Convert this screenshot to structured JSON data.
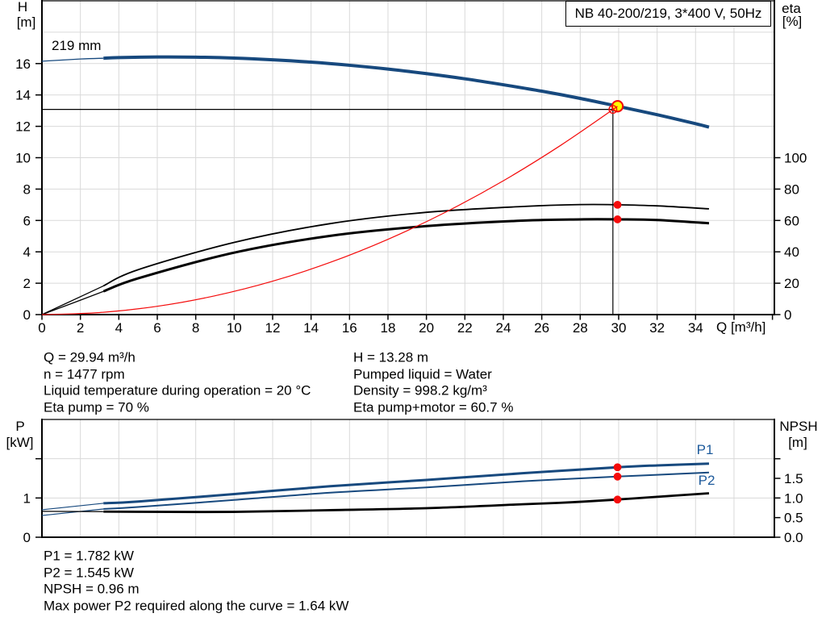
{
  "colors": {
    "curve_blue": "#17497E",
    "label_blue": "#1D5A9B",
    "red": "#F40B0B",
    "yellow": "#FFFF00",
    "grid": "#D9D9D9",
    "axis": "#000000",
    "text": "#000000"
  },
  "title_box": {
    "label": "NB 40-200/219, 3*400 V, 50Hz"
  },
  "impeller_label": "219 mm",
  "axis_labels": {
    "head": "H",
    "head_unit": "[m]",
    "eta": "eta",
    "eta_unit": "[%]",
    "flow_unit": "Q [m³/h]",
    "power": "P",
    "power_unit": "[kW]",
    "npsh": "NPSH",
    "npsh_unit": "[m]"
  },
  "curve_labels": {
    "p1": "P1",
    "p2": "P2"
  },
  "info_block": {
    "left": [
      "Q = 29.94 m³/h",
      "n = 1477 rpm",
      "Liquid temperature during operation = 20 °C",
      "Eta pump = 70 %"
    ],
    "right": [
      "H = 13.28 m",
      "Pumped liquid = Water",
      "Density = 998.2 kg/m³",
      "Eta pump+motor = 60.7 %"
    ]
  },
  "result_block": {
    "lines": [
      "P1 = 1.782 kW",
      "P2 = 1.545 kW",
      "NPSH = 0.96 m",
      "Max power P2 required along the curve = 1.64 kW"
    ]
  },
  "chart_data": [
    {
      "type": "line",
      "id": "hq",
      "title": "NB 40-200/219, 3*400 V, 50Hz",
      "xlabel": "Q [m³/h]",
      "ylabel_left": "H [m]",
      "ylabel_right": "eta [%]",
      "xlim": [
        0,
        38.1
      ],
      "ylim_left": [
        0,
        20
      ],
      "ylim_right": [
        0,
        200
      ],
      "grid": true,
      "x_tick_step": 2,
      "x_ticks_labeled": [
        0,
        2,
        4,
        6,
        8,
        10,
        12,
        14,
        16,
        18,
        20,
        22,
        24,
        26,
        28,
        30,
        32,
        34
      ],
      "x_ticks_unlabeled": [
        36,
        38
      ],
      "x_grid": [
        2,
        4,
        6,
        8,
        10,
        12,
        14,
        16,
        18,
        20,
        22,
        24,
        26,
        28,
        30,
        32,
        34,
        36,
        38
      ],
      "y_ticks_left": [
        0,
        2,
        4,
        6,
        8,
        10,
        12,
        14,
        16
      ],
      "y_grid_left": [
        2,
        4,
        6,
        8,
        10,
        12,
        14,
        16,
        18
      ],
      "y_ticks_right": [
        0,
        20,
        40,
        60,
        80,
        100
      ],
      "crosshair": {
        "q": 29.7,
        "h": 13.08
      },
      "series": [
        {
          "name": "eta-pump-curve",
          "label": "eta pump",
          "axis": "right",
          "color": "black",
          "width": 1.8,
          "lead_thin": {
            "until": 3.2,
            "width": 1.3
          },
          "points": [
            [
              0,
              0
            ],
            [
              2,
              11.4
            ],
            [
              3.2,
              18.3
            ],
            [
              5,
              28.6
            ],
            [
              10,
              46
            ],
            [
              15,
              58
            ],
            [
              20,
              65.2
            ],
            [
              25,
              68.9
            ],
            [
              28,
              70.1
            ],
            [
              29.94,
              70.0
            ],
            [
              32,
              69.3
            ],
            [
              34.7,
              67.4
            ]
          ]
        },
        {
          "name": "eta-pump-motor-curve",
          "label": "eta pump+motor",
          "axis": "right",
          "color": "black",
          "width": 3,
          "lead_thin": {
            "until": 3.2,
            "width": 1.3
          },
          "points": [
            [
              0,
              0
            ],
            [
              2,
              9.2
            ],
            [
              3.2,
              14.8
            ],
            [
              5,
              23.1
            ],
            [
              10,
              39.5
            ],
            [
              15,
              50.2
            ],
            [
              20,
              56.4
            ],
            [
              25,
              59.9
            ],
            [
              28,
              60.7
            ],
            [
              29.94,
              60.7
            ],
            [
              32,
              60.3
            ],
            [
              34.7,
              58.2
            ]
          ]
        },
        {
          "name": "pump-curve",
          "label": "219 mm",
          "axis": "left",
          "color": "blue",
          "width": 4,
          "lead_thin": {
            "until": 3.2,
            "width": 1.3
          },
          "points": [
            [
              0,
              16.15
            ],
            [
              2,
              16.29
            ],
            [
              3.2,
              16.34
            ],
            [
              4,
              16.38
            ],
            [
              6,
              16.42
            ],
            [
              8,
              16.41
            ],
            [
              10,
              16.35
            ],
            [
              12,
              16.24
            ],
            [
              14,
              16.09
            ],
            [
              16,
              15.89
            ],
            [
              18,
              15.65
            ],
            [
              20,
              15.36
            ],
            [
              22,
              15.03
            ],
            [
              24,
              14.65
            ],
            [
              26,
              14.24
            ],
            [
              28,
              13.78
            ],
            [
              29.94,
              13.28
            ],
            [
              32,
              12.74
            ],
            [
              34,
              12.17
            ],
            [
              34.7,
              11.95
            ]
          ]
        },
        {
          "name": "system-curve",
          "label": "system curve",
          "axis": "left",
          "color": "red",
          "width": 1.2,
          "above_markers": true,
          "points": [
            [
              0,
              0
            ],
            [
              3,
              0.13
            ],
            [
              6,
              0.53
            ],
            [
              9,
              1.2
            ],
            [
              12,
              2.13
            ],
            [
              15,
              3.33
            ],
            [
              18,
              4.8
            ],
            [
              21,
              6.53
            ],
            [
              24,
              8.53
            ],
            [
              27,
              10.8
            ],
            [
              29.94,
              13.27
            ]
          ]
        }
      ],
      "markers": {
        "duty_point": {
          "q": 29.94,
          "h": 13.28
        },
        "request_point": {
          "q": 29.7,
          "h": 13.08
        },
        "dots": [
          {
            "q": 29.94,
            "v": 70.0,
            "axis": "right"
          },
          {
            "q": 29.94,
            "v": 60.7,
            "axis": "right"
          }
        ]
      }
    },
    {
      "type": "line",
      "id": "power",
      "xlabel": "Q [m³/h]",
      "ylabel_left": "P [kW]",
      "ylabel_right": "NPSH [m]",
      "xlim": [
        0,
        38.1
      ],
      "ylim_left": [
        0,
        3
      ],
      "ylim_right": [
        0,
        3
      ],
      "grid": true,
      "x_ticks_labeled": [],
      "x_ticks_unlabeled": [],
      "x_grid": [
        2,
        4,
        6,
        8,
        10,
        12,
        14,
        16,
        18,
        20,
        22,
        24,
        26,
        28,
        30,
        32,
        34,
        36,
        38
      ],
      "y_ticks_left": [
        0,
        1,
        2
      ],
      "y_tick_labels_left": [
        "0",
        "1"
      ],
      "y_grid_left": [
        1,
        2
      ],
      "y_ticks_right": [
        0,
        0.5,
        1,
        1.5,
        2
      ],
      "y_tick_labels_right": [
        "0.0",
        "0.5",
        "1.0",
        "1.5"
      ],
      "series": [
        {
          "name": "p1-curve",
          "label": "P1",
          "axis": "left",
          "color": "blue",
          "width": 3,
          "lead_thin": {
            "until": 3.2,
            "width": 1.2
          },
          "points": [
            [
              0,
              0.7
            ],
            [
              3.2,
              0.865
            ],
            [
              5,
              0.91
            ],
            [
              10,
              1.1
            ],
            [
              15,
              1.3
            ],
            [
              20,
              1.46
            ],
            [
              25,
              1.63
            ],
            [
              29.94,
              1.782
            ],
            [
              32,
              1.83
            ],
            [
              34.7,
              1.875
            ]
          ]
        },
        {
          "name": "p2-curve",
          "label": "P2",
          "axis": "left",
          "color": "blue",
          "width": 2,
          "lead_thin": {
            "until": 3.2,
            "width": 1.2
          },
          "points": [
            [
              0,
              0.554
            ],
            [
              3.2,
              0.72
            ],
            [
              5,
              0.77
            ],
            [
              10,
              0.95
            ],
            [
              15,
              1.135
            ],
            [
              20,
              1.27
            ],
            [
              25,
              1.425
            ],
            [
              29.94,
              1.545
            ],
            [
              32,
              1.59
            ],
            [
              34.7,
              1.65
            ]
          ]
        },
        {
          "name": "npsh-curve",
          "label": "NPSH",
          "axis": "right",
          "color": "black",
          "width": 2.8,
          "lead_thin": {
            "until": 3.2,
            "width": 1.2
          },
          "points": [
            [
              0,
              0.66
            ],
            [
              3.2,
              0.652
            ],
            [
              5,
              0.648
            ],
            [
              10,
              0.646
            ],
            [
              15,
              0.69
            ],
            [
              20,
              0.74
            ],
            [
              25,
              0.84
            ],
            [
              27.5,
              0.89
            ],
            [
              29.94,
              0.96
            ],
            [
              32,
              1.03
            ],
            [
              34.7,
              1.12
            ]
          ]
        }
      ],
      "markers": {
        "dots": [
          {
            "q": 29.94,
            "v": 1.782,
            "axis": "left"
          },
          {
            "q": 29.94,
            "v": 1.545,
            "axis": "left"
          },
          {
            "q": 29.94,
            "v": 0.96,
            "axis": "right"
          }
        ]
      }
    }
  ]
}
